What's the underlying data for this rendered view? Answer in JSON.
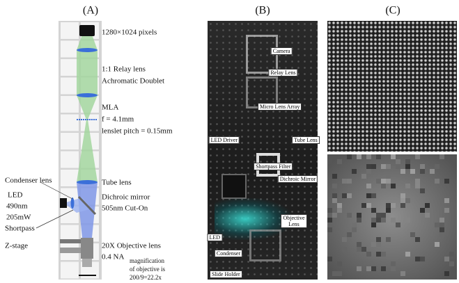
{
  "panel_a": {
    "label": "(A)",
    "camera": "1280×1024 pixels",
    "relay": [
      "1:1 Relay lens",
      "Achromatic Doublet"
    ],
    "mla": [
      "MLA",
      "f = 4.1mm",
      "lenslet pitch = 0.15mm"
    ],
    "tube": "Tube lens",
    "condenser": "Condenser lens",
    "led": [
      "LED",
      "490nm",
      "205mW"
    ],
    "shortpass": "Shortpass",
    "dichroic": [
      "Dichroic mirror",
      "505nm Cut-On"
    ],
    "zstage": "Z-stage",
    "objective": [
      "20X Objective lens",
      "0.4 NA"
    ],
    "magnification": [
      "magnification",
      "of objective is",
      "200/9=22.2x"
    ]
  },
  "panel_b": {
    "label": "(B)",
    "callouts": [
      "Camera",
      "Relay Lens",
      "Micro Lens Array",
      "LED Driver",
      "Tube Lens",
      "Shortpass Filter",
      "Dichroic Mirror",
      "Objective Lens",
      "LED",
      "Condenser",
      "Slide Holder"
    ]
  },
  "panel_c": {
    "label": "(C)"
  }
}
